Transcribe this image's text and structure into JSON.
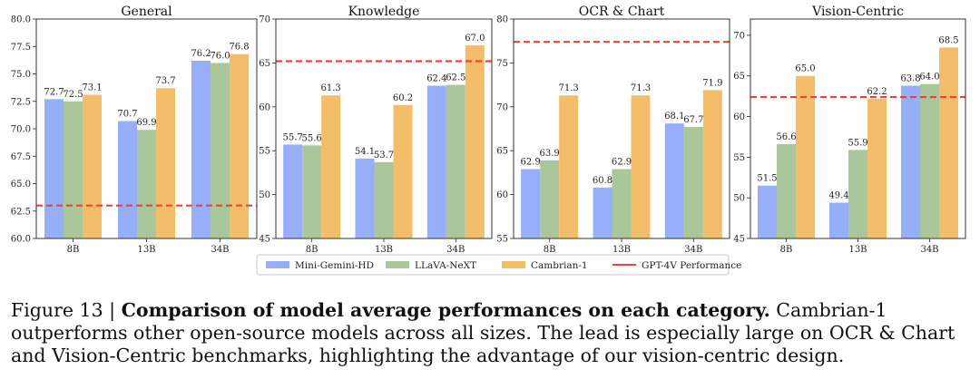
{
  "chart_data": [
    {
      "type": "bar",
      "title": "General",
      "categories": [
        "8B",
        "13B",
        "34B"
      ],
      "series": [
        {
          "name": "Mini-Gemini-HD",
          "values": [
            72.7,
            70.7,
            76.2
          ]
        },
        {
          "name": "LLaVA-NeXT",
          "values": [
            72.5,
            69.9,
            76.0
          ]
        },
        {
          "name": "Cambrian-1",
          "values": [
            73.1,
            73.7,
            76.8
          ]
        }
      ],
      "reference": {
        "name": "GPT-4V Performance",
        "value": 63.0
      },
      "ylim": [
        60,
        80
      ],
      "yticks": [
        "60.0",
        "62.5",
        "65.0",
        "67.5",
        "70.0",
        "72.5",
        "75.0",
        "77.5",
        "80.0"
      ],
      "labels": [
        [
          "72.7",
          "70.7",
          "76.2"
        ],
        [
          "72.5",
          "69.9",
          "76.0"
        ],
        [
          "73.1",
          "73.7",
          "76.8"
        ]
      ]
    },
    {
      "type": "bar",
      "title": "Knowledge",
      "categories": [
        "8B",
        "13B",
        "34B"
      ],
      "series": [
        {
          "name": "Mini-Gemini-HD",
          "values": [
            55.7,
            54.1,
            62.4
          ]
        },
        {
          "name": "LLaVA-NeXT",
          "values": [
            55.6,
            53.7,
            62.5
          ]
        },
        {
          "name": "Cambrian-1",
          "values": [
            61.3,
            60.2,
            67.0
          ]
        }
      ],
      "reference": {
        "name": "GPT-4V Performance",
        "value": 65.2
      },
      "ylim": [
        45,
        70
      ],
      "yticks": [
        "45",
        "50",
        "55",
        "60",
        "65",
        "70"
      ],
      "labels": [
        [
          "55.7",
          "54.1",
          "62.4"
        ],
        [
          "55.6",
          "53.7",
          "62.5"
        ],
        [
          "61.3",
          "60.2",
          "67.0"
        ]
      ]
    },
    {
      "type": "bar",
      "title": "OCR & Chart",
      "categories": [
        "8B",
        "13B",
        "34B"
      ],
      "series": [
        {
          "name": "Mini-Gemini-HD",
          "values": [
            62.9,
            60.8,
            68.1
          ]
        },
        {
          "name": "LLaVA-NeXT",
          "values": [
            63.9,
            62.9,
            67.7
          ]
        },
        {
          "name": "Cambrian-1",
          "values": [
            71.3,
            71.3,
            71.9
          ]
        }
      ],
      "reference": {
        "name": "GPT-4V Performance",
        "value": 77.4
      },
      "ylim": [
        55,
        80
      ],
      "yticks": [
        "55",
        "60",
        "65",
        "70",
        "75",
        "80"
      ],
      "labels": [
        [
          "62.9",
          "60.8",
          "68.1"
        ],
        [
          "63.9",
          "62.9",
          "67.7"
        ],
        [
          "71.3",
          "71.3",
          "71.9"
        ]
      ]
    },
    {
      "type": "bar",
      "title": "Vision-Centric",
      "categories": [
        "8B",
        "13B",
        "34B"
      ],
      "series": [
        {
          "name": "Mini-Gemini-HD",
          "values": [
            51.5,
            49.4,
            63.8
          ]
        },
        {
          "name": "LLaVA-NeXT",
          "values": [
            56.6,
            55.9,
            64.0
          ]
        },
        {
          "name": "Cambrian-1",
          "values": [
            65.0,
            62.2,
            68.5
          ]
        }
      ],
      "reference": {
        "name": "GPT-4V Performance",
        "value": 62.4
      },
      "ylim": [
        45,
        72
      ],
      "yticks": [
        "45",
        "50",
        "55",
        "60",
        "65",
        "70"
      ],
      "labels": [
        [
          "51.5",
          "49.4",
          "63.8"
        ],
        [
          "56.6",
          "55.9",
          "64.0"
        ],
        [
          "65.0",
          "62.2",
          "68.5"
        ]
      ]
    }
  ],
  "legend": {
    "placement": "bottom-center",
    "items": [
      "Mini-Gemini-HD",
      "LLaVA-NeXT",
      "Cambrian-1",
      "GPT-4V Performance"
    ]
  },
  "colors": {
    "mini_gemini": "#97aefb",
    "llava": "#a9c79a",
    "cambrian": "#f4bd6a",
    "gpt4v": "#e8443a"
  },
  "caption": {
    "prefix": "Figure 13 | ",
    "bold": "Comparison of model average performances on each category.",
    "rest": " Cambrian-1 outperforms other open-source models across all sizes. The lead is especially large on OCR & Chart and Vision-Centric benchmarks, highlighting the advantage of our vision-centric design."
  }
}
